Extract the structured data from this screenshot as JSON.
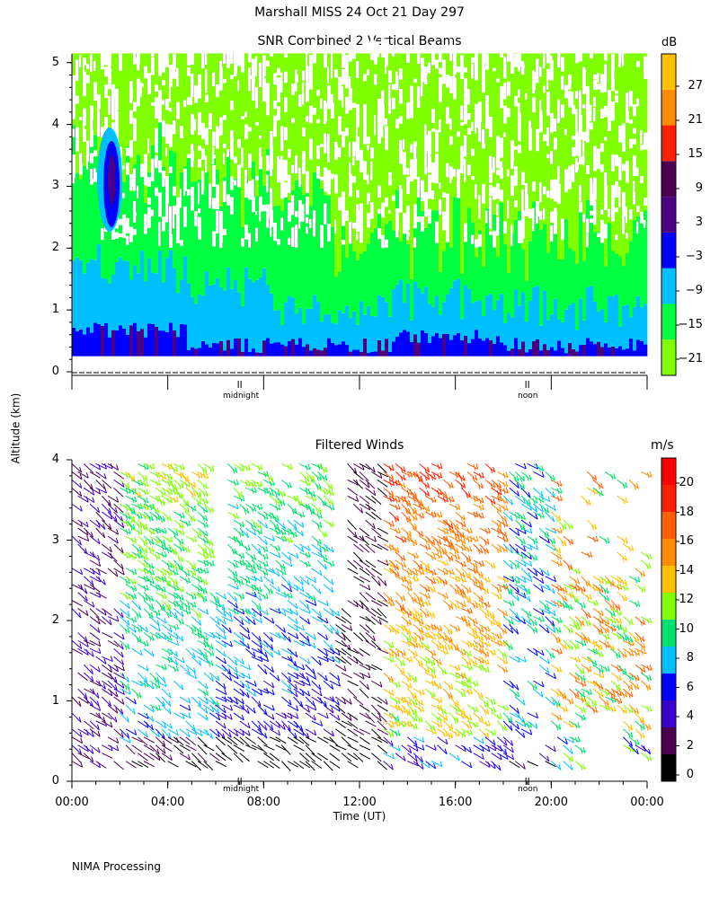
{
  "header": {
    "title": "Marshall MISS   24 Oct 21 Day 297"
  },
  "footer": {
    "credit": "NIMA Processing"
  },
  "shared": {
    "ylabel": "Altitude (km)",
    "xlabel": "Time (UT)",
    "x_ticks": [
      "00:00",
      "04:00",
      "08:00",
      "12:00",
      "16:00",
      "20:00",
      "00:00"
    ],
    "marker_midnight": "midnight",
    "marker_noon": "noon"
  },
  "colors": {
    "colorbar_snr": [
      "#7fff00",
      "#00ff40",
      "#00bfff",
      "#0000ff",
      "#4b0082",
      "#4b0050",
      "#ff2000",
      "#ff8c00",
      "#ffc000"
    ],
    "colorbar_wind": [
      "#000000",
      "#4b0050",
      "#3b00cc",
      "#0000ff",
      "#00bfff",
      "#00e070",
      "#7fff00",
      "#ffc000",
      "#ff8c00",
      "#ff6000",
      "#ff2000",
      "#ff0000"
    ]
  },
  "chart_data": [
    {
      "type": "heatmap",
      "title": "SNR Combined 2 Vertical Beams",
      "xlabel": "",
      "ylabel": "Altitude (km)",
      "xlim": [
        0,
        24
      ],
      "ylim": [
        0,
        5.2
      ],
      "y_ticks": [
        "0",
        "1",
        "2",
        "3",
        "4",
        "5"
      ],
      "colorbar": {
        "unit": "dB",
        "ticks": [
          "27",
          "21",
          "15",
          "9",
          "3",
          "−3",
          "−9",
          "−15",
          "−21"
        ]
      },
      "description_values": {
        "snr_range_db": [
          -21,
          30
        ]
      }
    },
    {
      "type": "scatter",
      "title": "Filtered Winds",
      "xlabel": "Time (UT)",
      "ylabel": "Altitude (km)",
      "xlim": [
        0,
        24
      ],
      "ylim": [
        0,
        4
      ],
      "y_ticks": [
        "0",
        "1",
        "2",
        "3",
        "4"
      ],
      "colorbar": {
        "unit": "m/s",
        "ticks": [
          "20",
          "18",
          "16",
          "14",
          "12",
          "10",
          "8",
          "6",
          "4",
          "2",
          "0"
        ]
      },
      "wind_speed_range_ms": [
        0,
        22
      ]
    }
  ]
}
